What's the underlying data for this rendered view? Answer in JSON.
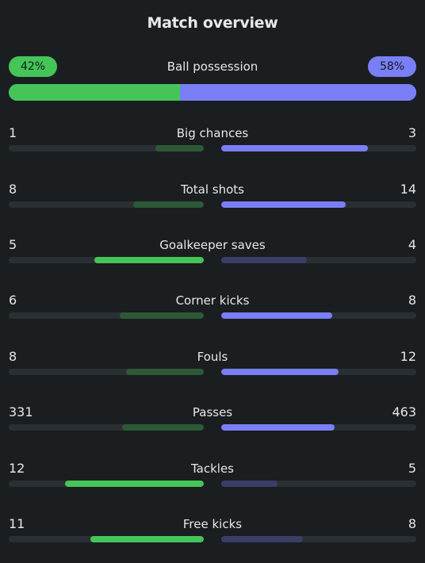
{
  "title": "Match overview",
  "colors": {
    "home": "#45c558",
    "away": "#7a7ff6",
    "home_dim": "#2d5a35",
    "away_dim": "#3b3f66",
    "track": "#2a2f33",
    "background": "#1a1e21"
  },
  "possession": {
    "label": "Ball possession",
    "home_text": "42%",
    "away_text": "58%",
    "home_value": 42,
    "away_value": 58
  },
  "stats": [
    {
      "label": "Big chances",
      "home": "1",
      "away": "3",
      "home_fill": 0.25,
      "away_fill": 0.75
    },
    {
      "label": "Total shots",
      "home": "8",
      "away": "14",
      "home_fill": 0.36,
      "away_fill": 0.64
    },
    {
      "label": "Goalkeeper saves",
      "home": "5",
      "away": "4",
      "home_fill": 0.56,
      "away_fill": 0.44
    },
    {
      "label": "Corner kicks",
      "home": "6",
      "away": "8",
      "home_fill": 0.43,
      "away_fill": 0.57
    },
    {
      "label": "Fouls",
      "home": "8",
      "away": "12",
      "home_fill": 0.4,
      "away_fill": 0.6
    },
    {
      "label": "Passes",
      "home": "331",
      "away": "463",
      "home_fill": 0.42,
      "away_fill": 0.58
    },
    {
      "label": "Tackles",
      "home": "12",
      "away": "5",
      "home_fill": 0.71,
      "away_fill": 0.29
    },
    {
      "label": "Free kicks",
      "home": "11",
      "away": "8",
      "home_fill": 0.58,
      "away_fill": 0.42
    }
  ]
}
